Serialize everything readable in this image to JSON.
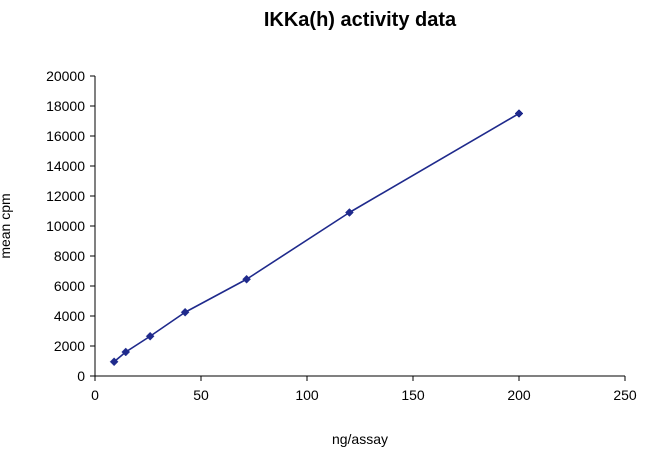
{
  "chart_data": {
    "type": "line",
    "title": "IKKa(h) activity data",
    "xlabel": "ng/assay",
    "ylabel": "mean cpm",
    "xlim": [
      0,
      250
    ],
    "ylim": [
      0,
      20000
    ],
    "x_ticks": [
      "0",
      "50",
      "100",
      "150",
      "200",
      "250"
    ],
    "y_ticks": [
      "0",
      "2000",
      "4000",
      "6000",
      "8000",
      "10000",
      "12000",
      "14000",
      "16000",
      "18000",
      "20000"
    ],
    "grid": false,
    "legend": "none",
    "colors": {
      "series": "#1F2A8C",
      "axis": "#000000"
    },
    "series": [
      {
        "x": [
          9,
          14.5,
          26,
          42.5,
          71.5,
          120,
          200
        ],
        "y": [
          950,
          1600,
          2650,
          4250,
          6450,
          10900,
          17500
        ]
      }
    ]
  }
}
